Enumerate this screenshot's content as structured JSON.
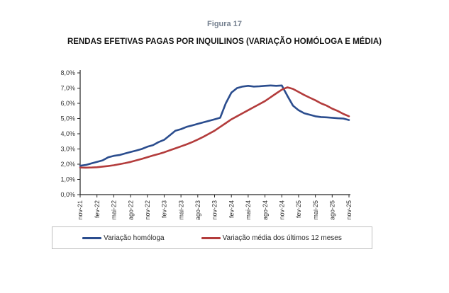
{
  "figure": {
    "label": "Figura 17",
    "title": "RENDAS EFETIVAS PAGAS POR INQUILINOS (VARIAÇÃO HOMÓLOGA E MÉDIA)"
  },
  "colors": {
    "series_blue": "#2B4D8E",
    "series_red": "#B33C3C",
    "axis": "#262626",
    "tick_text": "#333333",
    "legend_border": "#BFBFBF",
    "figure_label_text": "#75808F"
  },
  "chart_data": {
    "type": "line",
    "title": "RENDAS EFETIVAS PAGAS POR INQUILINOS (VARIAÇÃO HOMÓLOGA E MÉDIA)",
    "xlabel": "",
    "ylabel": "",
    "ylim": [
      0,
      8
    ],
    "y_tick_step": 1,
    "y_tick_labels": [
      "0,0%",
      "1,0%",
      "2,0%",
      "3,0%",
      "4,0%",
      "5,0%",
      "6,0%",
      "7,0%",
      "8,0%"
    ],
    "x_tick_every": 3,
    "grid": false,
    "legend_position": "bottom",
    "x": [
      "nov-21",
      "dez-21",
      "jan-22",
      "fev-22",
      "mar-22",
      "abr-22",
      "mai-22",
      "jun-22",
      "jul-22",
      "ago-22",
      "set-22",
      "out-22",
      "nov-22",
      "dez-22",
      "jan-23",
      "fev-23",
      "mar-23",
      "abr-23",
      "mai-23",
      "jun-23",
      "jul-23",
      "ago-23",
      "set-23",
      "out-23",
      "nov-23",
      "dez-23",
      "jan-24",
      "fev-24",
      "mar-24",
      "abr-24",
      "mai-24",
      "jun-24",
      "jul-24",
      "ago-24",
      "set-24",
      "out-24",
      "nov-24",
      "dez-24",
      "jan-25",
      "fev-25",
      "mar-25",
      "abr-25",
      "mai-25",
      "jun-25",
      "jul-25",
      "ago-25",
      "set-25",
      "out-25",
      "nov-25"
    ],
    "series": [
      {
        "name": "Variação homóloga",
        "color": "#2B4D8E",
        "values": [
          1.9,
          1.95,
          2.05,
          2.15,
          2.25,
          2.45,
          2.55,
          2.6,
          2.7,
          2.8,
          2.9,
          3.0,
          3.15,
          3.25,
          3.45,
          3.6,
          3.9,
          4.2,
          4.3,
          4.45,
          4.55,
          4.65,
          4.75,
          4.85,
          4.95,
          5.05,
          6.0,
          6.7,
          7.0,
          7.1,
          7.15,
          7.1,
          7.12,
          7.15,
          7.17,
          7.15,
          7.17,
          6.5,
          5.85,
          5.55,
          5.35,
          5.25,
          5.15,
          5.1,
          5.08,
          5.05,
          5.02,
          5.0,
          4.9
        ]
      },
      {
        "name": "Variação média dos últimos 12 meses",
        "color": "#B33C3C",
        "values": [
          1.78,
          1.77,
          1.78,
          1.8,
          1.84,
          1.88,
          1.93,
          2.0,
          2.07,
          2.15,
          2.25,
          2.35,
          2.46,
          2.57,
          2.67,
          2.78,
          2.91,
          3.04,
          3.17,
          3.3,
          3.45,
          3.62,
          3.8,
          4.0,
          4.2,
          4.45,
          4.7,
          4.95,
          5.15,
          5.35,
          5.55,
          5.75,
          5.95,
          6.15,
          6.4,
          6.65,
          6.9,
          7.05,
          6.95,
          6.75,
          6.55,
          6.37,
          6.2,
          6.0,
          5.85,
          5.65,
          5.5,
          5.3,
          5.15
        ]
      }
    ]
  }
}
